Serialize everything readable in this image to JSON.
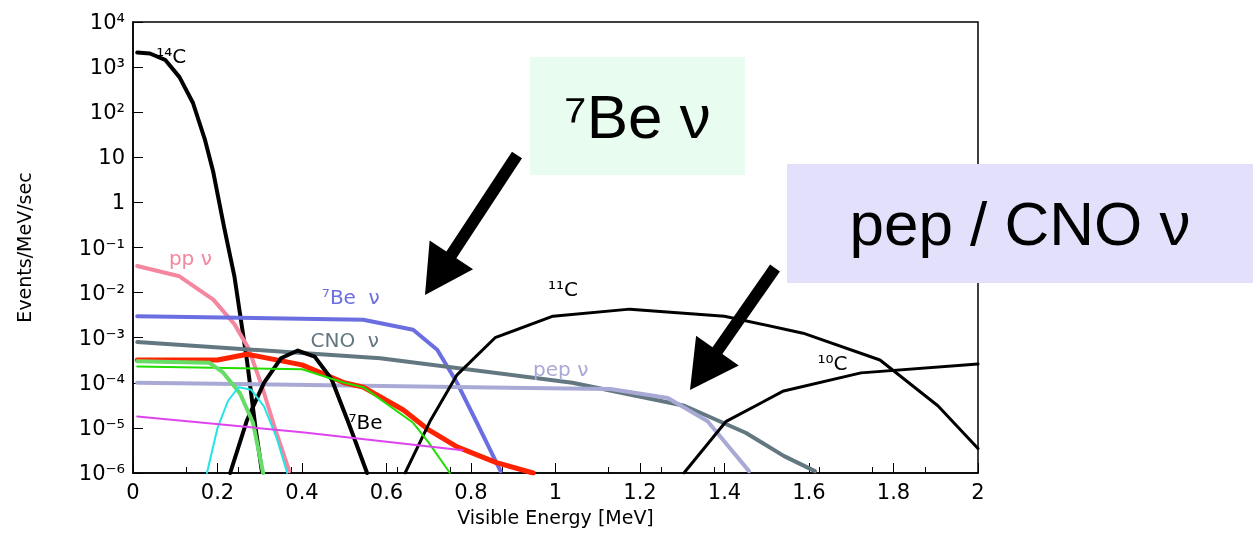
{
  "chart_data": {
    "type": "line",
    "xlabel": "Visible Energy [MeV]",
    "ylabel": "Events/MeV/sec",
    "log": "y",
    "grid": false,
    "legend": false,
    "marker": "none",
    "line_style": "solid",
    "xlim": [
      0,
      2
    ],
    "xticks": [
      0,
      0.2,
      0.4,
      0.6,
      0.8,
      1,
      1.2,
      1.4,
      1.6,
      1.8,
      2
    ],
    "ylim": [
      1e-06,
      10000
    ],
    "yticks": [
      {
        "value": 1e-06,
        "label": "10⁻⁶"
      },
      {
        "value": 1e-05,
        "label": "10⁻⁵"
      },
      {
        "value": 0.0001,
        "label": "10⁻⁴"
      },
      {
        "value": 0.001,
        "label": "10⁻³"
      },
      {
        "value": 0.01,
        "label": "10⁻²"
      },
      {
        "value": 0.1,
        "label": "10⁻¹"
      },
      1,
      10,
      {
        "value": 100,
        "label": "10²"
      },
      {
        "value": 1000,
        "label": "10³"
      },
      {
        "value": 10000,
        "label": "10⁴"
      }
    ],
    "series": [
      {
        "name": "¹⁴C",
        "color": "#000000",
        "x": [
          0.01,
          0.04,
          0.076,
          0.11,
          0.142,
          0.17,
          0.19,
          0.215,
          0.24,
          0.27,
          0.29,
          0.305
        ],
        "values": [
          2100,
          2000,
          1450,
          600,
          160,
          25,
          4.7,
          0.3,
          0.023,
          0.0003,
          1e-05,
          1.1e-06
        ]
      },
      {
        "name": "pp ν",
        "color": "#f4869f",
        "x": [
          0.01,
          0.11,
          0.19,
          0.24,
          0.273,
          0.305,
          0.338,
          0.37
        ],
        "values": [
          0.039,
          0.023,
          0.007,
          0.002,
          0.00059,
          8.5e-05,
          8.5e-06,
          1.1e-06
        ]
      },
      {
        "name": "⁷Be  ν",
        "color": "#6b6ee0",
        "x": [
          0.01,
          0.545,
          0.663,
          0.72,
          0.767,
          0.814,
          0.87
        ],
        "values": [
          0.003,
          0.0025,
          0.0015,
          0.00054,
          0.0001,
          1.3e-05,
          1.1e-06
        ]
      },
      {
        "name": "CNO  ν",
        "color": "#627780",
        "x": [
          0.01,
          0.585,
          1.04,
          1.305,
          1.45,
          1.54,
          1.614
        ],
        "values": [
          0.0008,
          0.00035,
          0.0001,
          3.1e-05,
          7.8e-06,
          2.4e-06,
          1.1e-06
        ]
      },
      {
        "name": "pep ν",
        "color": "#a9a9d6",
        "x": [
          0.01,
          1.13,
          1.266,
          1.36,
          1.458
        ],
        "values": [
          0.0001,
          7.3e-05,
          4.6e-05,
          1.4e-05,
          1.1e-06
        ]
      },
      {
        "color": "#22dd00",
        "x": [
          0.01,
          0.4,
          0.5,
          0.545,
          0.663,
          0.7,
          0.75
        ],
        "values": [
          0.00023,
          0.0002,
          0.0001,
          8e-05,
          1.3e-05,
          4.7e-06,
          1e-06
        ]
      },
      {
        "color": "#66dd66",
        "x": [
          0.01,
          0.18,
          0.213,
          0.253,
          0.284,
          0.308
        ],
        "values": [
          0.0003,
          0.00028,
          0.00017,
          5.9e-05,
          1.3e-05,
          1e-06
        ]
      },
      {
        "color": "#22e5e5",
        "x": [
          0.175,
          0.2,
          0.225,
          0.25,
          0.28,
          0.31,
          0.34,
          0.365
        ],
        "values": [
          1e-06,
          1e-05,
          4e-05,
          8e-05,
          7e-05,
          3e-05,
          6e-06,
          1e-06
        ]
      },
      {
        "color": "#dd44ee",
        "x": [
          0.01,
          0.4,
          0.78
        ],
        "values": [
          1.8e-05,
          8e-06,
          3.2e-06
        ]
      },
      {
        "color": "#ff2200",
        "x": [
          0.01,
          0.2,
          0.27,
          0.4,
          0.5,
          0.545,
          0.64,
          0.7,
          0.767,
          0.86,
          0.947
        ],
        "values": [
          0.00032,
          0.00032,
          0.00043,
          0.00025,
          0.0001,
          8e-05,
          2.5e-05,
          9e-06,
          3.8e-06,
          1.7e-06,
          1e-06
        ]
      },
      {
        "name": "⁷Be",
        "color": "#000000",
        "x": [
          0.23,
          0.27,
          0.31,
          0.35,
          0.39,
          0.43,
          0.47,
          0.51,
          0.554
        ],
        "values": [
          1e-06,
          1.5e-05,
          0.0001,
          0.00035,
          0.00052,
          0.00038,
          0.00012,
          1.3e-05,
          1e-06
        ]
      },
      {
        "name": "¹¹C",
        "color": "#000000",
        "x": [
          0.644,
          0.703,
          0.767,
          0.857,
          0.994,
          1.176,
          1.4,
          1.586,
          1.768,
          1.905,
          2
        ],
        "values": [
          1e-06,
          1.4e-05,
          0.00015,
          0.001,
          0.003,
          0.0043,
          0.003,
          0.00126,
          0.00032,
          3.1e-05,
          3.5e-06
        ]
      },
      {
        "name": "¹⁰C",
        "color": "#000000",
        "x": [
          1.304,
          1.404,
          1.54,
          1.723,
          2
        ],
        "values": [
          1e-06,
          1.4e-05,
          6.6e-05,
          0.000166,
          0.00026
        ]
      }
    ],
    "annotations": [
      "⁷Be ν",
      "pep / CNO ν"
    ]
  }
}
